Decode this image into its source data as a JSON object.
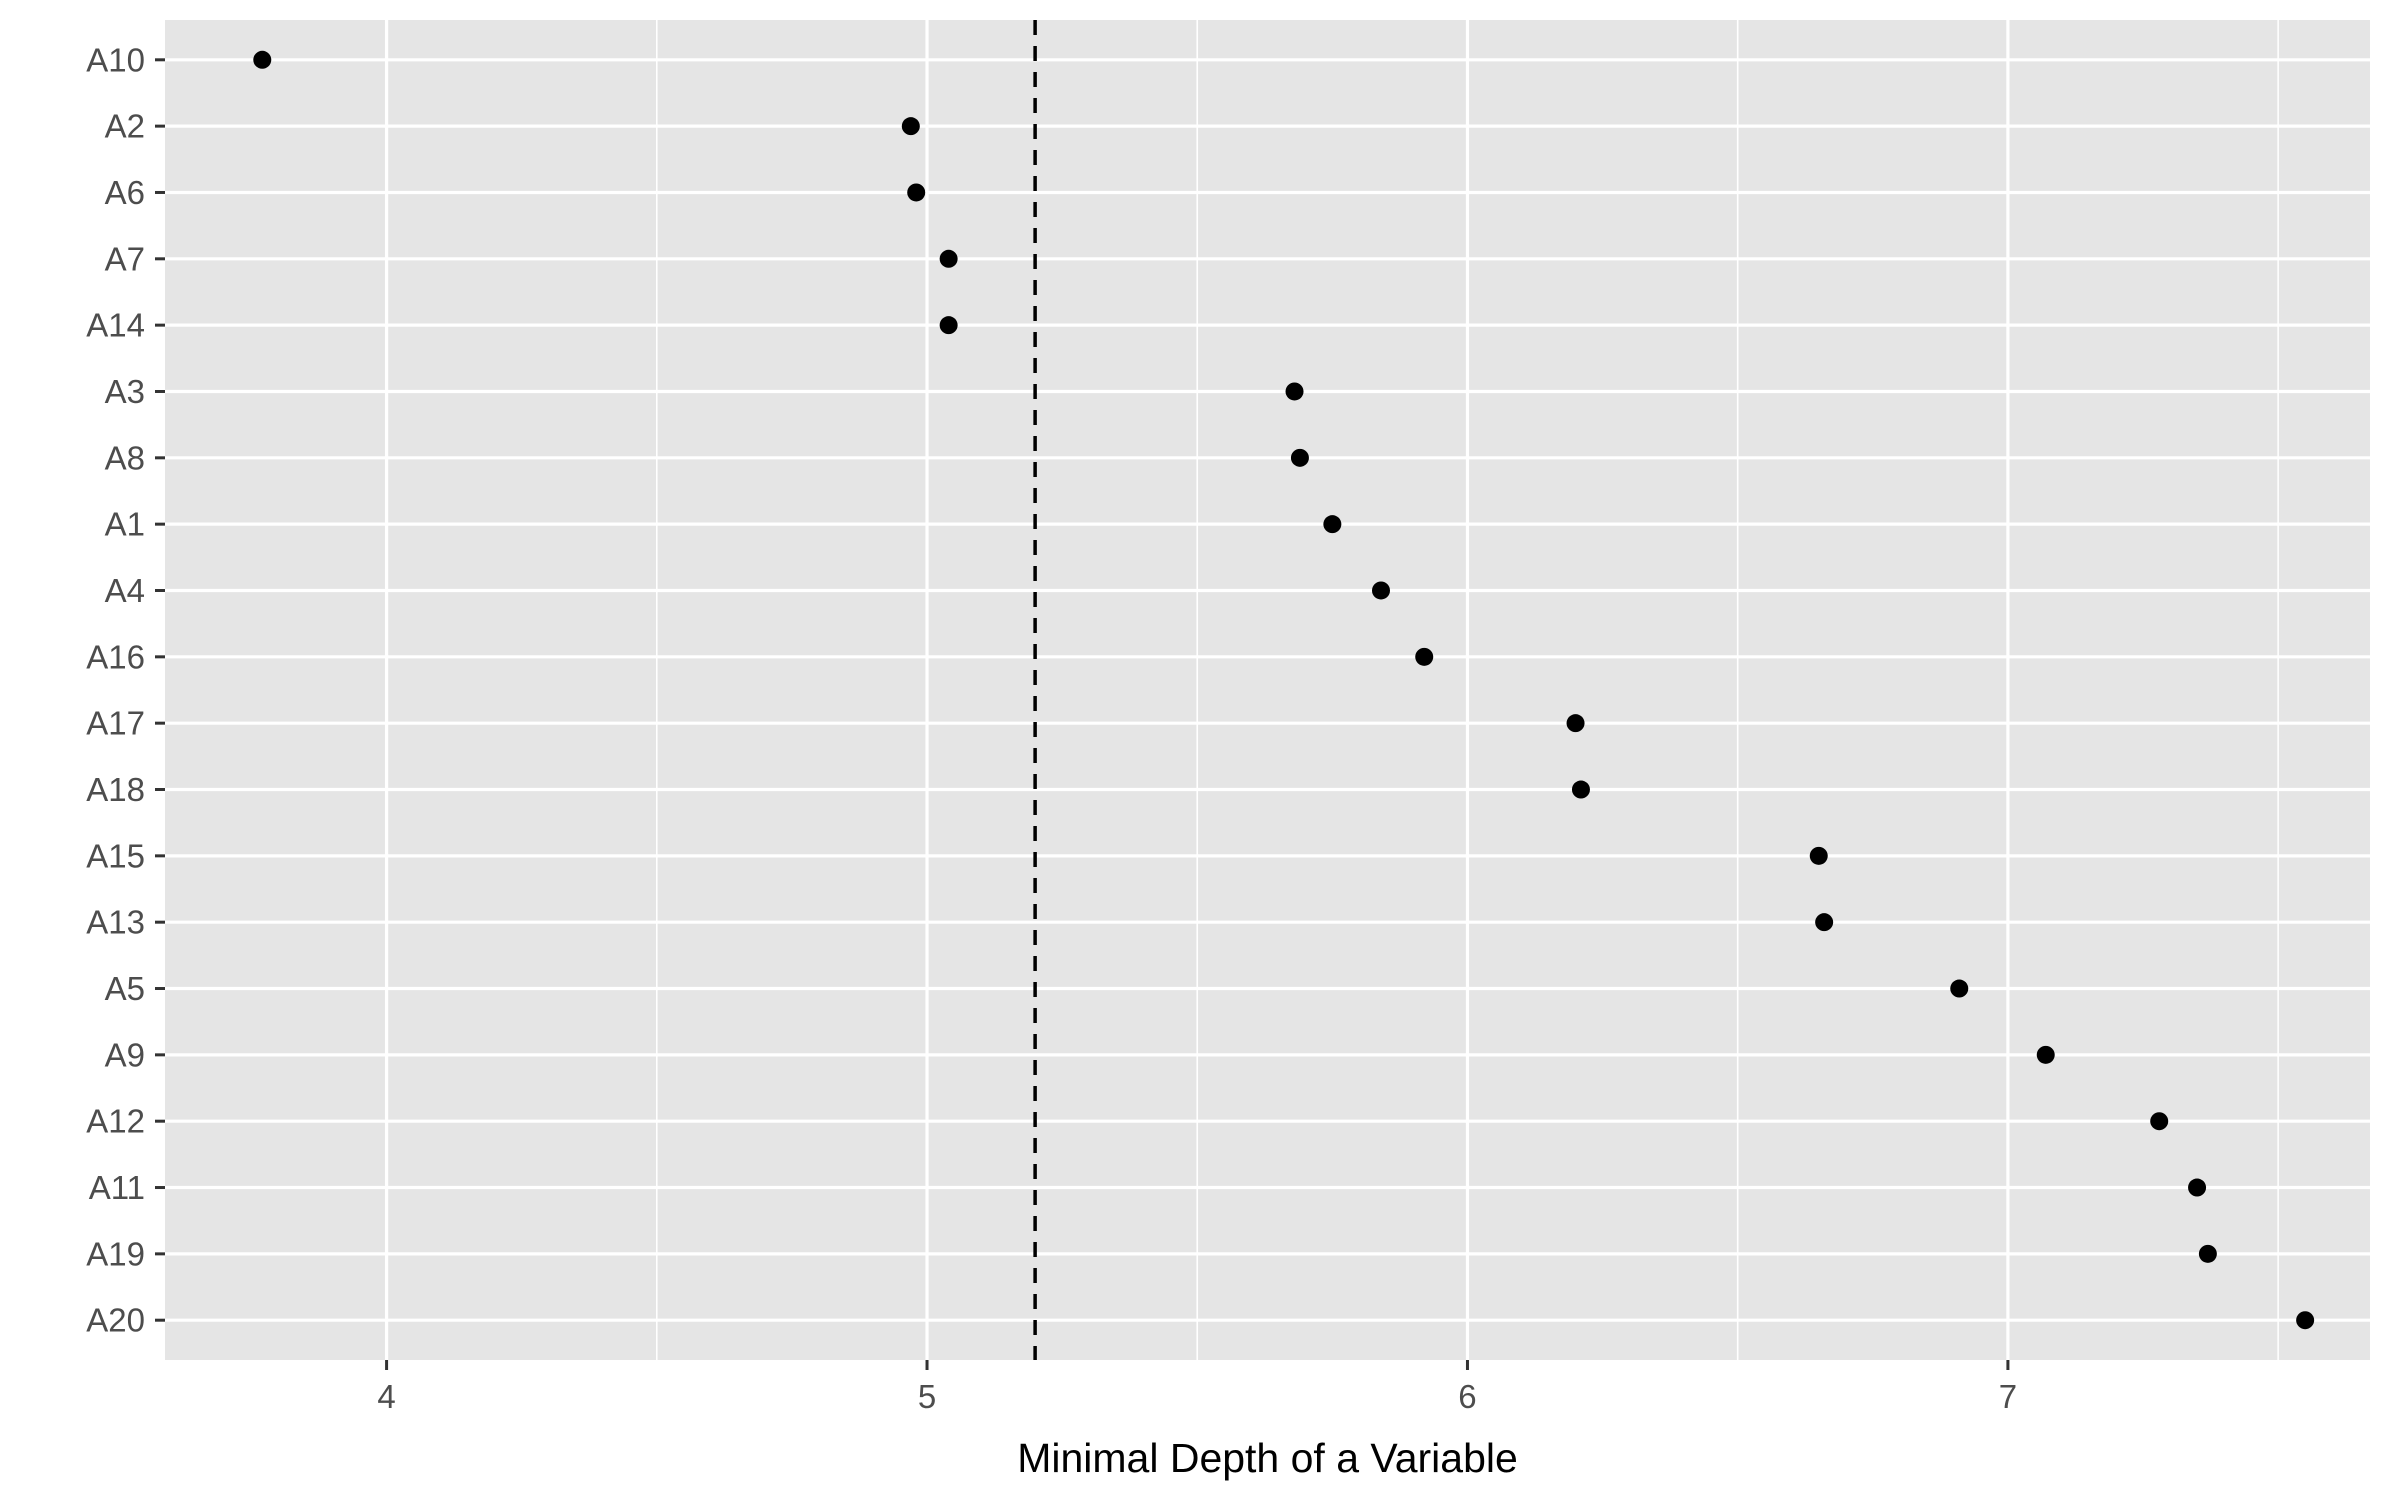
{
  "chart_data": {
    "type": "scatter",
    "title": "",
    "xlabel": "Minimal Depth of a Variable",
    "ylabel": "",
    "xlim": [
      3.59,
      7.67
    ],
    "x_ticks": [
      4,
      5,
      6,
      7
    ],
    "x_tick_labels": [
      "4",
      "5",
      "6",
      "7"
    ],
    "x_minor_ticks": [
      4.5,
      5.5,
      6.5,
      7.5
    ],
    "grid": true,
    "legend": "none",
    "categories": [
      "A10",
      "A2",
      "A6",
      "A7",
      "A14",
      "A3",
      "A8",
      "A1",
      "A4",
      "A16",
      "A17",
      "A18",
      "A15",
      "A13",
      "A5",
      "A9",
      "A12",
      "A11",
      "A19",
      "A20"
    ],
    "values": [
      3.77,
      4.97,
      4.98,
      5.04,
      5.04,
      5.68,
      5.69,
      5.75,
      5.84,
      5.92,
      6.2,
      6.21,
      6.65,
      6.66,
      6.91,
      7.07,
      7.28,
      7.35,
      7.37,
      7.55
    ],
    "reference_line": {
      "value": 5.2,
      "style": "dashed"
    },
    "colors": {
      "panel_background": "#e5e5e5",
      "grid": "#ffffff",
      "point": "#000000",
      "reference_line": "#000000",
      "tick_label": "#4d4d4d",
      "axis_title": "#000000"
    }
  }
}
